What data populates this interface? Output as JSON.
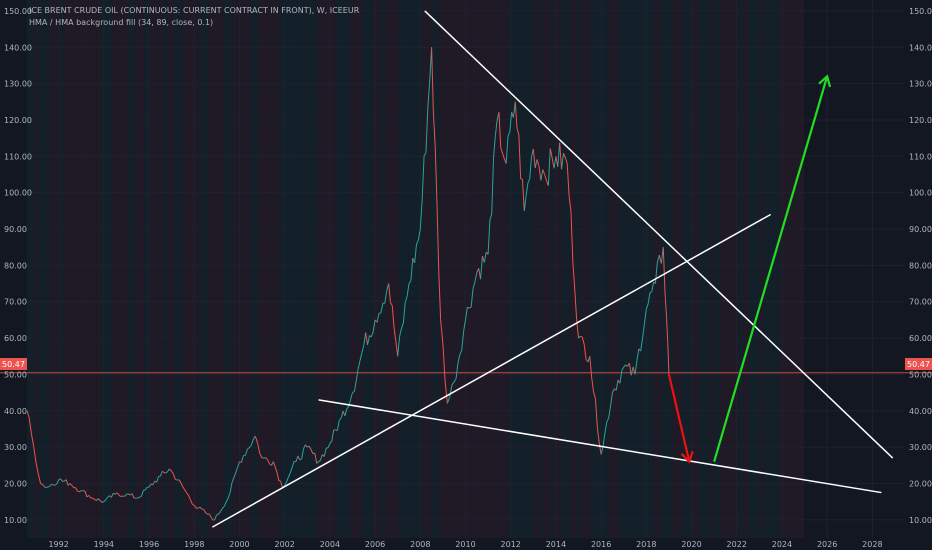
{
  "header": {
    "title": "ICE BRENT CRUDE OIL (CONTINUOUS: CURRENT CONTRACT IN FRONT), W, ICEEUR",
    "indicator": "HMA / HMA background fill (34, 89, close, 0.1)"
  },
  "price_tag": "50.47",
  "colors": {
    "background": "#131722",
    "grid": "#1e2230",
    "up": "#26a69a",
    "down": "#ef5350",
    "price_line": "#ef5350",
    "trendline": "#ffffff",
    "arrow_up": "#22dd22",
    "arrow_down": "#ee1111"
  },
  "chart_data": {
    "type": "line",
    "ylim": [
      5,
      153
    ],
    "xlim": [
      1990.6,
      2029.4
    ],
    "y_ticks": [
      "10.00",
      "20.00",
      "30.00",
      "40.00",
      "50.00",
      "60.00",
      "70.00",
      "80.00",
      "90.00",
      "100.00",
      "110.00",
      "120.00",
      "130.00",
      "140.00",
      "150.00"
    ],
    "x_ticks": [
      "1992",
      "1994",
      "1996",
      "1998",
      "2000",
      "2002",
      "2004",
      "2006",
      "2008",
      "2010",
      "2012",
      "2014",
      "2016",
      "2018",
      "2020",
      "2022",
      "2024",
      "2026",
      "2028"
    ],
    "current_price": 50.47,
    "series": [
      {
        "x": [
          1990.6,
          1990.9,
          1991.2,
          1991.5,
          1992,
          1992.5,
          1993,
          1993.5,
          1994,
          1994.5,
          1995,
          1995.5,
          1996,
          1996.5,
          1996.9,
          1997.5,
          1998,
          1998.5,
          1998.9,
          1999.5,
          2000,
          2000.7,
          2001,
          2001.5,
          2001.9,
          2002.5,
          2003,
          2003.5,
          2004,
          2004.5,
          2005,
          2005.5,
          2006,
          2006.6,
          2007,
          2007.5,
          2008,
          2008.5,
          2008.9,
          2009.2,
          2009.5,
          2010,
          2010.5,
          2011,
          2011.4,
          2011.8,
          2012.2,
          2012.6,
          2013,
          2013.5,
          2014,
          2014.5,
          2015,
          2015.5,
          2016.0,
          2016.5,
          2017,
          2017.5,
          2018,
          2018.4,
          2018.75,
          2018.9,
          2019.0
        ],
        "values": [
          40,
          30,
          20,
          19,
          21,
          20,
          18,
          16,
          15,
          17,
          17,
          16,
          19,
          22,
          24,
          19,
          14,
          12,
          10,
          16,
          26,
          33,
          27,
          26,
          19,
          26,
          30,
          26,
          31,
          38,
          45,
          58,
          65,
          75,
          55,
          75,
          90,
          140,
          65,
          42,
          48,
          65,
          78,
          83,
          120,
          108,
          125,
          95,
          112,
          105,
          110,
          108,
          60,
          55,
          28,
          45,
          52,
          50,
          68,
          75,
          85,
          65,
          50
        ]
      }
    ],
    "trendlines": [
      {
        "from": [
          2008.2,
          150
        ],
        "to": [
          2028.9,
          27
        ]
      },
      {
        "from": [
          1998.8,
          8
        ],
        "to": [
          2023.5,
          94
        ]
      },
      {
        "from": [
          2003.5,
          43
        ],
        "to": [
          2028.4,
          17.5
        ]
      }
    ],
    "arrows": [
      {
        "color": "red",
        "from": [
          2019.0,
          50
        ],
        "to": [
          2019.9,
          26
        ]
      },
      {
        "color": "green",
        "from": [
          2021.0,
          26
        ],
        "to": [
          2026.0,
          132
        ]
      }
    ]
  }
}
